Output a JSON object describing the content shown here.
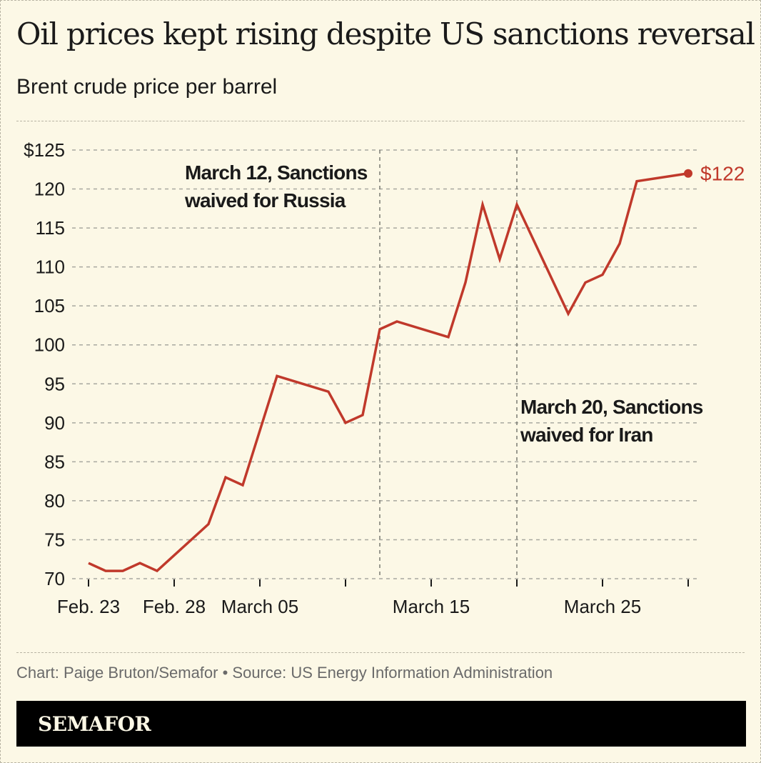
{
  "title": "Oil prices kept rising despite US sanctions reversal",
  "subtitle": "Brent crude price per barrel",
  "footer": "Chart: Paige Bruton/Semafor • Source: US Energy Information Administration",
  "brand": "SEMAFOR",
  "colors": {
    "line": "#c0392b",
    "background": "#fcf8e6",
    "grid": "#a8a8a0",
    "text": "#1a1a1a"
  },
  "chart_data": {
    "type": "line",
    "title": "Oil prices kept rising despite US sanctions reversal",
    "subtitle": "Brent crude price per barrel",
    "ylim": [
      70,
      125
    ],
    "yticks": [
      70,
      75,
      80,
      85,
      90,
      95,
      100,
      105,
      110,
      115,
      120,
      125
    ],
    "ytick_labels": [
      "70",
      "75",
      "80",
      "85",
      "90",
      "95",
      "100",
      "105",
      "110",
      "115",
      "120",
      "$125"
    ],
    "xticks": [
      "2026-02-23",
      "2026-02-28",
      "2026-03-05",
      "2026-03-10",
      "2026-03-15",
      "2026-03-20",
      "2026-03-25",
      "2026-03-30"
    ],
    "xtick_labels": [
      "Feb. 23",
      "Feb. 28",
      "March 05",
      "",
      "March 15",
      "",
      "March 25",
      ""
    ],
    "grid": "horizontal dashed",
    "x": [
      "2026-02-23",
      "2026-02-24",
      "2026-02-25",
      "2026-02-26",
      "2026-02-27",
      "2026-03-02",
      "2026-03-03",
      "2026-03-04",
      "2026-03-06",
      "2026-03-09",
      "2026-03-10",
      "2026-03-11",
      "2026-03-12",
      "2026-03-13",
      "2026-03-16",
      "2026-03-17",
      "2026-03-18",
      "2026-03-19",
      "2026-03-20",
      "2026-03-23",
      "2026-03-24",
      "2026-03-25",
      "2026-03-26",
      "2026-03-27",
      "2026-03-30"
    ],
    "values": [
      72,
      71,
      71,
      72,
      71,
      77,
      83,
      82,
      96,
      94,
      90,
      91,
      102,
      103,
      101,
      108,
      118,
      111,
      118,
      104,
      108,
      109,
      113,
      121,
      122
    ],
    "end_label": "$122",
    "annotations": [
      {
        "date": "2026-03-12",
        "line1": "March 12, Sanctions",
        "line2": "waived for Russia"
      },
      {
        "date": "2026-03-20",
        "line1": "March 20, Sanctions",
        "line2": "waived for Iran"
      }
    ]
  }
}
